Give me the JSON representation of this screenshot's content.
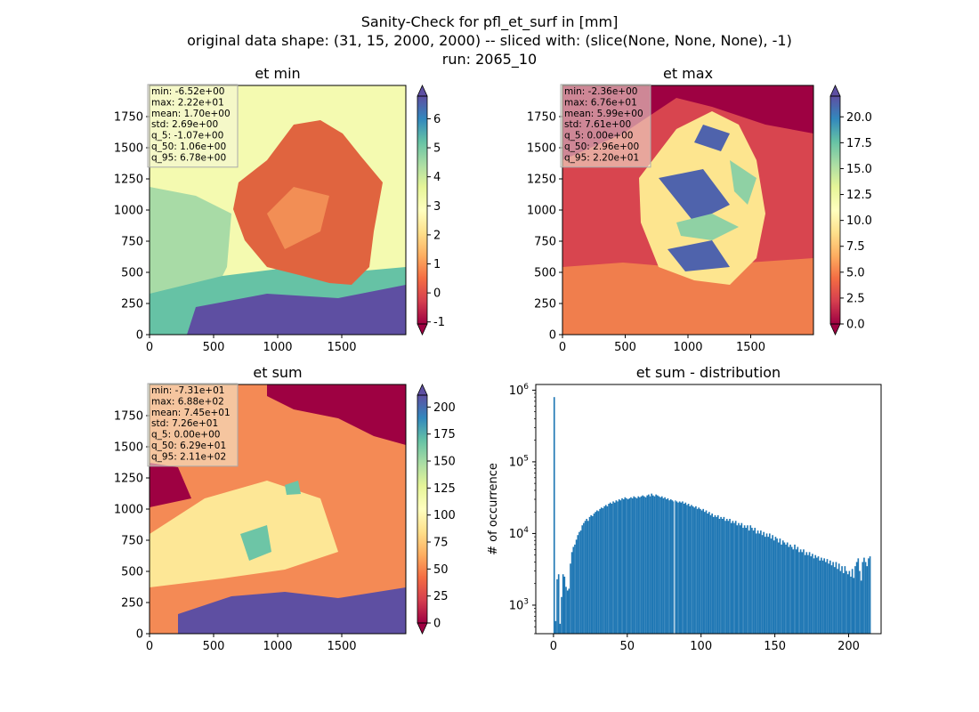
{
  "figure": {
    "title_lines": [
      "Sanity-Check for pfl_et_surf in [mm]",
      "original data shape: (31, 15, 2000, 2000) -- sliced with: (slice(None, None, None), -1)",
      "run: 2065_10"
    ]
  },
  "colormap": {
    "name": "Spectral",
    "stops": [
      "#9e0142",
      "#d53e4f",
      "#f46d43",
      "#fdae61",
      "#fee08b",
      "#ffffbf",
      "#e6f598",
      "#abdda4",
      "#66c2a5",
      "#3288bd",
      "#5e4fa2"
    ]
  },
  "chart_data": [
    {
      "type": "heatmap",
      "title": "et min",
      "x_ticks": [
        0,
        500,
        1000,
        1500
      ],
      "y_ticks": [
        0,
        250,
        500,
        750,
        1000,
        1250,
        1500,
        1750
      ],
      "xlim": [
        0,
        2000
      ],
      "ylim": [
        0,
        2000
      ],
      "colorbar": {
        "min": -1.07,
        "max": 6.78,
        "ticks": [
          -1,
          0,
          1,
          2,
          3,
          4,
          5,
          6
        ],
        "extend": "both"
      },
      "stats": [
        "min: -6.52e+00",
        "max: 2.22e+01",
        "mean: 1.70e+00",
        "std: 2.69e+00",
        "q_5: -1.07e+00",
        "q_50: 1.06e+00",
        "q_95: 6.78e+00"
      ],
      "stats_box_color": "#f5f5dc"
    },
    {
      "type": "heatmap",
      "title": "et max",
      "x_ticks": [
        0,
        500,
        1000,
        1500
      ],
      "y_ticks": [
        0,
        250,
        500,
        750,
        1000,
        1250,
        1500,
        1750
      ],
      "xlim": [
        0,
        2000
      ],
      "ylim": [
        0,
        2000
      ],
      "colorbar": {
        "min": 0.0,
        "max": 22.0,
        "ticks": [
          0.0,
          2.5,
          5.0,
          7.5,
          10.0,
          12.5,
          15.0,
          17.5,
          20.0
        ],
        "extend": "both"
      },
      "stats": [
        "min: -2.36e+00",
        "max: 6.76e+01",
        "mean: 5.99e+00",
        "std: 7.61e+00",
        "q_5: 0.00e+00",
        "q_50: 2.96e+00",
        "q_95: 2.20e+01"
      ],
      "stats_box_color": "#f5f5dc"
    },
    {
      "type": "heatmap",
      "title": "et sum",
      "x_ticks": [
        0,
        500,
        1000,
        1500
      ],
      "y_ticks": [
        0,
        250,
        500,
        750,
        1000,
        1250,
        1500,
        1750
      ],
      "xlim": [
        0,
        2000
      ],
      "ylim": [
        0,
        2000
      ],
      "colorbar": {
        "min": 0.0,
        "max": 211.0,
        "ticks": [
          0,
          25,
          50,
          75,
          100,
          125,
          150,
          175,
          200
        ],
        "extend": "both"
      },
      "stats": [
        "min: -7.31e+01",
        "max: 6.88e+02",
        "mean: 7.45e+01",
        "std: 7.26e+01",
        "q_5: 0.00e+00",
        "q_50: 6.29e+01",
        "q_95: 2.11e+02"
      ],
      "stats_box_color": "#f5f5dc"
    },
    {
      "type": "bar",
      "title": "et sum - distribution",
      "ylabel": "# of occurrence",
      "yscale": "log",
      "x_ticks": [
        0,
        50,
        100,
        150,
        200
      ],
      "xlim": [
        -12,
        222
      ],
      "ylim": [
        400,
        1200000
      ],
      "y_ticks": [
        1000,
        10000,
        100000,
        1000000
      ],
      "y_tick_labels": [
        "10^3",
        "10^4",
        "10^5",
        "10^6"
      ],
      "color": "#1f77b4",
      "bins_from": 0,
      "bin_width": 1,
      "counts": [
        800000,
        600,
        2300,
        2700,
        550,
        1300,
        2700,
        2500,
        1800,
        1600,
        1700,
        3800,
        5500,
        6500,
        7000,
        8200,
        9500,
        10500,
        11000,
        13000,
        14000,
        15000,
        16000,
        15000,
        17000,
        18000,
        17500,
        19000,
        20000,
        21000,
        20500,
        22000,
        23000,
        22500,
        24000,
        25000,
        24000,
        26000,
        27000,
        26000,
        28000,
        27000,
        29000,
        28000,
        30000,
        29000,
        31000,
        30000,
        32000,
        31000,
        30000,
        31000,
        32000,
        31000,
        33000,
        32000,
        31000,
        33000,
        32000,
        33000,
        34000,
        33000,
        32000,
        34000,
        35000,
        33000,
        36000,
        34000,
        33000,
        35000,
        34000,
        33000,
        32000,
        33000,
        31000,
        32000,
        30000,
        31000,
        29000,
        30000,
        29000,
        28000,
        29000,
        28000,
        27000,
        28000,
        27000,
        28000,
        26000,
        27000,
        25000,
        26000,
        24000,
        25000,
        24000,
        23000,
        24000,
        22000,
        23000,
        22000,
        21000,
        22000,
        20000,
        21000,
        19000,
        20000,
        18000,
        19000,
        17000,
        18000,
        17000,
        18000,
        16000,
        17000,
        16000,
        17000,
        15000,
        16000,
        15000,
        16000,
        14000,
        15000,
        14000,
        15000,
        13000,
        14000,
        13000,
        14000,
        12000,
        13000,
        12000,
        13000,
        11000,
        13000,
        12000,
        11000,
        12000,
        10000,
        11000,
        10000,
        11000,
        9500,
        10500,
        9000,
        10000,
        9000,
        10000,
        8500,
        9500,
        8000,
        9000,
        8500,
        7500,
        8500,
        7000,
        8000,
        7500,
        7000,
        7500,
        6500,
        7000,
        6500,
        6000,
        7000,
        6000,
        6500,
        5500,
        6000,
        5500,
        6000,
        5000,
        5500,
        5000,
        5500,
        4800,
        5200,
        4500,
        5000,
        4600,
        4800,
        4200,
        4600,
        4200,
        4500,
        4000,
        4400,
        3800,
        4200,
        3600,
        4000,
        3400,
        4000,
        3200,
        3800,
        3000,
        3500,
        2800,
        3500,
        3000,
        2700,
        3000,
        2500,
        3200,
        2400,
        3500,
        4000,
        4500,
        3000,
        2200,
        4000,
        4600,
        4000,
        3500,
        4500,
        4800
      ],
      "gap_at": 82
    }
  ]
}
